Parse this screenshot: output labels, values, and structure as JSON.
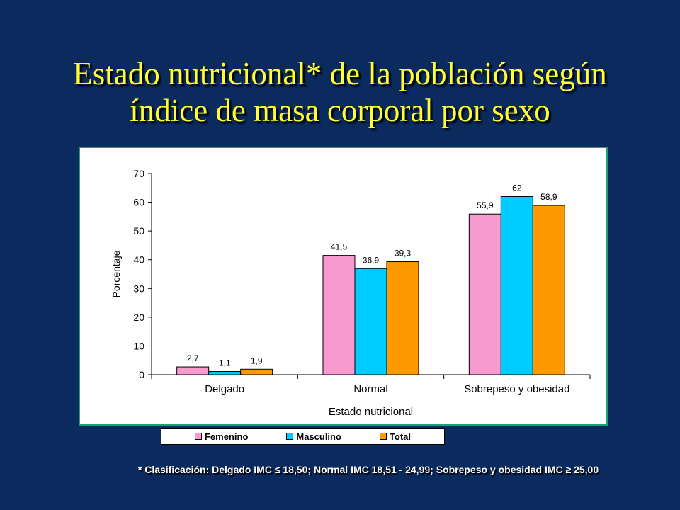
{
  "slide": {
    "title_line1": "Estado nutricional* de la población según",
    "title_line2": "índice de masa corporal por sexo",
    "footnote": "* Clasificación: Delgado IMC ≤ 18,50; Normal IMC 18,51 - 24,99; Sobrepeso y obesidad IMC ≥ 25,00",
    "background_color": "#0b2a5e",
    "title_color": "#ffff33"
  },
  "chart_data": {
    "type": "bar",
    "title": "",
    "xlabel": "Estado nutricional",
    "ylabel": "Porcentaje",
    "categories": [
      "Delgado",
      "Normal",
      "Sobrepeso y obesidad"
    ],
    "ylim": [
      0,
      70
    ],
    "yticks": [
      0,
      10,
      20,
      30,
      40,
      50,
      60,
      70
    ],
    "grid": false,
    "legend_position": "bottom",
    "series": [
      {
        "name": "Femenino",
        "color": "#f79bcf",
        "values": [
          2.7,
          41.5,
          55.9
        ],
        "labels": [
          "2,7",
          "41,5",
          "55,9"
        ]
      },
      {
        "name": "Masculino",
        "color": "#00ccff",
        "values": [
          1.1,
          36.9,
          62
        ],
        "labels": [
          "1,1",
          "36,9",
          "62"
        ]
      },
      {
        "name": "Total",
        "color": "#ff9900",
        "values": [
          1.9,
          39.3,
          58.9
        ],
        "labels": [
          "1,9",
          "39,3",
          "58,9"
        ]
      }
    ]
  }
}
